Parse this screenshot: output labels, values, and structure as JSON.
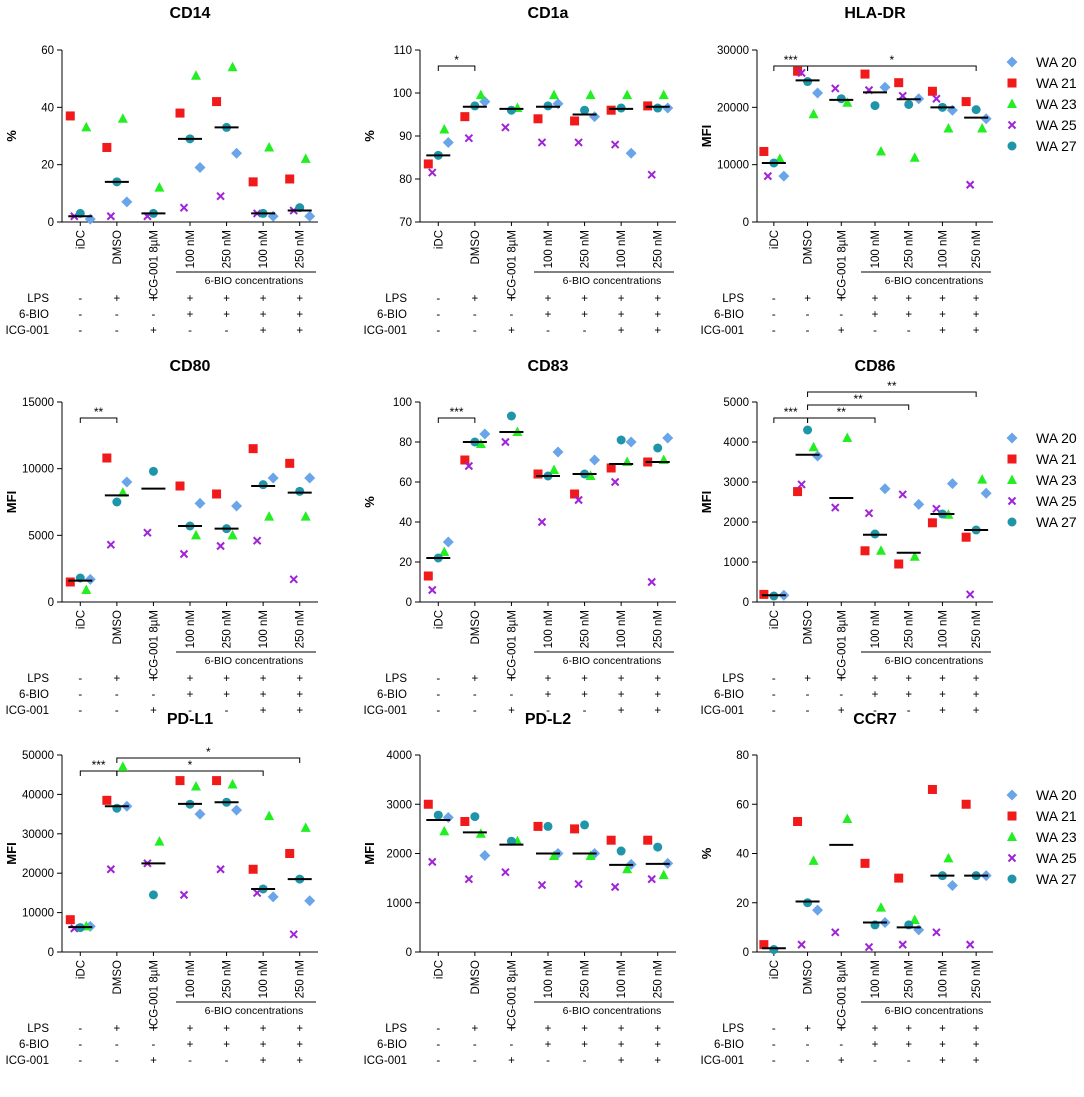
{
  "figure": {
    "categories": [
      "iDC",
      "DMSO",
      "ICG-001 8µM",
      "100 nM",
      "250 nM",
      "100 nM",
      "250 nM"
    ],
    "bracket_label": "6-BIO concentrations",
    "condition_rows": [
      {
        "label": "LPS",
        "marks": [
          "-",
          "+",
          "+",
          "+",
          "+",
          "+",
          "+"
        ]
      },
      {
        "label": "6-BIO",
        "marks": [
          "-",
          "-",
          "-",
          "+",
          "+",
          "+",
          "+"
        ]
      },
      {
        "label": "ICG-001",
        "marks": [
          "-",
          "-",
          "+",
          "-",
          "-",
          "+",
          "+"
        ]
      }
    ],
    "legend": [
      {
        "name": "WA 20",
        "shape": "diamond",
        "color": "#6aa5ea"
      },
      {
        "name": "WA 21",
        "shape": "square",
        "color": "#f01a1a"
      },
      {
        "name": "WA 23",
        "shape": "triangle",
        "color": "#22ee22"
      },
      {
        "name": "WA 25",
        "shape": "cross",
        "color": "#a023d8"
      },
      {
        "name": "WA 27",
        "shape": "circle",
        "color": "#1e95a8"
      }
    ]
  },
  "chart_data": [
    {
      "type": "scatter",
      "title": "CD14",
      "ylabel": "%",
      "ylim": [
        0,
        60
      ],
      "yticks": [
        0,
        20,
        40,
        60
      ],
      "points": [
        [
          1,
          37,
          33,
          2,
          3
        ],
        [
          7,
          26,
          36,
          2,
          14
        ],
        [
          null,
          null,
          12,
          2,
          3
        ],
        [
          19,
          38,
          51,
          5,
          29
        ],
        [
          24,
          42,
          54,
          9,
          33
        ],
        [
          2,
          14,
          26,
          3,
          3
        ],
        [
          2,
          15,
          22,
          4,
          5
        ]
      ],
      "medians": [
        2,
        14,
        3,
        29,
        33,
        3,
        4
      ],
      "sig": []
    },
    {
      "type": "scatter",
      "title": "CD1a",
      "ylabel": "%",
      "ylim": [
        70,
        110
      ],
      "yticks": [
        70,
        80,
        90,
        100,
        110
      ],
      "points": [
        [
          88.5,
          83.5,
          91.5,
          81.5,
          85.5
        ],
        [
          98,
          94.5,
          99.5,
          89.5,
          97
        ],
        [
          null,
          null,
          96.5,
          92,
          96
        ],
        [
          97.5,
          94,
          99.5,
          88.5,
          97
        ],
        [
          94.5,
          93.5,
          99.5,
          88.5,
          96
        ],
        [
          86,
          96,
          99.5,
          88,
          96.5
        ],
        [
          96.5,
          97,
          99.5,
          81,
          96.5
        ]
      ],
      "medians": [
        85.5,
        96.8,
        96.3,
        96.8,
        95,
        96.3,
        96.8
      ],
      "sig": [
        {
          "from": 0,
          "to": 1,
          "label": "*",
          "level": 0
        }
      ]
    },
    {
      "type": "scatter",
      "title": "HLA-DR",
      "ylabel": "MFI",
      "ylim": [
        0,
        30000
      ],
      "yticks": [
        0,
        10000,
        20000,
        30000
      ],
      "points": [
        [
          8000,
          12300,
          11000,
          8000,
          10300
        ],
        [
          22500,
          26300,
          18800,
          26000,
          24500
        ],
        [
          null,
          null,
          20800,
          23300,
          21500
        ],
        [
          23500,
          25800,
          12300,
          23000,
          20300
        ],
        [
          21500,
          24300,
          11200,
          22000,
          20500
        ],
        [
          19500,
          22800,
          16300,
          21500,
          20000
        ],
        [
          18000,
          21000,
          16300,
          6500,
          19600
        ]
      ],
      "medians": [
        10300,
        24700,
        21300,
        22600,
        21400,
        20000,
        18200
      ],
      "sig": [
        {
          "from": 0,
          "to": 1,
          "label": "***",
          "level": 0
        },
        {
          "from": 1,
          "to": 6,
          "label": "*",
          "level": 0
        }
      ]
    },
    {
      "type": "scatter",
      "title": "CD80",
      "ylabel": "MFI",
      "ylim": [
        0,
        15000
      ],
      "yticks": [
        0,
        5000,
        10000,
        15000
      ],
      "points": [
        [
          1700,
          1500,
          900,
          null,
          1800
        ],
        [
          9000,
          10800,
          8200,
          4300,
          7500
        ],
        [
          null,
          null,
          null,
          5200,
          9800
        ],
        [
          7400,
          8700,
          5000,
          3600,
          5700
        ],
        [
          7200,
          8100,
          5000,
          4200,
          5500
        ],
        [
          9300,
          11500,
          6400,
          4600,
          8800
        ],
        [
          9300,
          10400,
          6400,
          1700,
          8300
        ]
      ],
      "medians": [
        1600,
        8000,
        8500,
        5700,
        5500,
        8700,
        8200
      ],
      "sig": [
        {
          "from": 0,
          "to": 1,
          "label": "**",
          "level": 0
        }
      ]
    },
    {
      "type": "scatter",
      "title": "CD83",
      "ylabel": "%",
      "ylim": [
        0,
        100
      ],
      "yticks": [
        0,
        20,
        40,
        60,
        80,
        100
      ],
      "points": [
        [
          30,
          13,
          25,
          6,
          22
        ],
        [
          84,
          71,
          79,
          68,
          80
        ],
        [
          null,
          null,
          85,
          80,
          93
        ],
        [
          75,
          64,
          66,
          40,
          63
        ],
        [
          71,
          54,
          63,
          51,
          64
        ],
        [
          80,
          67,
          70,
          60,
          81
        ],
        [
          82,
          70,
          71,
          10,
          77
        ]
      ],
      "medians": [
        22,
        80,
        85,
        63,
        64,
        69,
        70
      ],
      "sig": [
        {
          "from": 0,
          "to": 1,
          "label": "***",
          "level": 0
        }
      ]
    },
    {
      "type": "scatter",
      "title": "CD86",
      "ylabel": "MFI",
      "ylim": [
        0,
        5000
      ],
      "yticks": [
        0,
        1000,
        2000,
        3000,
        4000,
        5000
      ],
      "points": [
        [
          170,
          190,
          null,
          null,
          150
        ],
        [
          3650,
          2760,
          3870,
          2940,
          4300
        ],
        [
          null,
          null,
          4100,
          2360,
          null
        ],
        [
          2830,
          1280,
          1280,
          2220,
          1700
        ],
        [
          2440,
          950,
          1130,
          2690,
          null
        ],
        [
          2960,
          1980,
          2180,
          2330,
          2200
        ],
        [
          2720,
          1620,
          3060,
          190,
          1800
        ]
      ],
      "medians": [
        170,
        3680,
        2600,
        1680,
        1230,
        2200,
        1800
      ],
      "sig": [
        {
          "from": 0,
          "to": 1,
          "label": "***",
          "level": 0
        },
        {
          "from": 1,
          "to": 3,
          "label": "**",
          "level": 0
        },
        {
          "from": 1,
          "to": 4,
          "label": "**",
          "level": 1
        },
        {
          "from": 1,
          "to": 6,
          "label": "**",
          "level": 2
        }
      ]
    },
    {
      "type": "scatter",
      "title": "PD-L1",
      "ylabel": "MFI",
      "ylim": [
        0,
        50000
      ],
      "yticks": [
        0,
        10000,
        20000,
        30000,
        40000,
        50000
      ],
      "points": [
        [
          6500,
          8200,
          6500,
          6000,
          6200
        ],
        [
          37000,
          38500,
          47000,
          21000,
          36500
        ],
        [
          null,
          null,
          28000,
          22500,
          14500
        ],
        [
          35000,
          43500,
          42000,
          14500,
          37500
        ],
        [
          36000,
          43500,
          42500,
          21000,
          38000
        ],
        [
          14000,
          21000,
          34500,
          15000,
          16000
        ],
        [
          13000,
          25000,
          31500,
          4500,
          18500
        ]
      ],
      "medians": [
        6300,
        37000,
        22500,
        37600,
        38000,
        16000,
        18500
      ],
      "sig": [
        {
          "from": 0,
          "to": 1,
          "label": "***",
          "level": 0
        },
        {
          "from": 1,
          "to": 5,
          "label": "*",
          "level": 0
        },
        {
          "from": 1,
          "to": 6,
          "label": "*",
          "level": 1
        }
      ]
    },
    {
      "type": "scatter",
      "title": "PD-L2",
      "ylabel": "MFI",
      "ylim": [
        0,
        4000
      ],
      "yticks": [
        0,
        1000,
        2000,
        3000,
        4000
      ],
      "points": [
        [
          2730,
          3000,
          2450,
          1830,
          2780
        ],
        [
          1960,
          2650,
          2400,
          1480,
          2750
        ],
        [
          null,
          null,
          2250,
          1620,
          2250
        ],
        [
          2000,
          2550,
          1950,
          1360,
          2550
        ],
        [
          2000,
          2500,
          1950,
          1380,
          2580
        ],
        [
          1780,
          2270,
          1680,
          1320,
          2050
        ],
        [
          1800,
          2270,
          1560,
          1480,
          2130
        ]
      ],
      "medians": [
        2680,
        2430,
        2180,
        2000,
        2000,
        1770,
        1790
      ],
      "sig": []
    },
    {
      "type": "scatter",
      "title": "CCR7",
      "ylabel": "%",
      "ylim": [
        0,
        80
      ],
      "yticks": [
        0,
        20,
        40,
        60,
        80
      ],
      "points": [
        [
          null,
          3,
          null,
          null,
          1
        ],
        [
          17,
          53,
          37,
          3,
          20
        ],
        [
          null,
          null,
          54,
          8,
          null
        ],
        [
          12,
          36,
          18,
          2,
          11
        ],
        [
          9,
          30,
          13,
          3,
          11
        ],
        [
          27,
          66,
          38,
          8,
          31
        ],
        [
          31,
          60,
          null,
          3,
          31
        ]
      ],
      "medians": [
        1.5,
        20.5,
        43.5,
        12,
        10,
        31,
        31
      ],
      "sig": []
    }
  ]
}
